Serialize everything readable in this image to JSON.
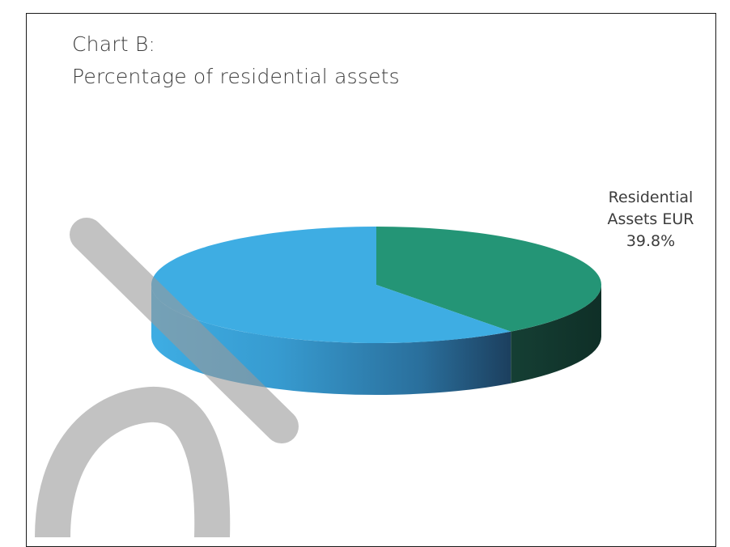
{
  "title_line1": "Chart B:",
  "title_line2": "Percentage of residential assets",
  "chart_data": {
    "type": "pie",
    "title": "Chart B: Percentage of residential assets",
    "is_3d": true,
    "slices": [
      {
        "label_lines": [
          "Residential",
          "Assets EUR",
          "39.8%"
        ],
        "value": 39.8,
        "color": "#249576",
        "side_color": "#14463a"
      },
      {
        "label_lines": [],
        "value": 60.2,
        "color": "#3eade3",
        "side_color": "#2a7fb0"
      }
    ],
    "legend": "none"
  },
  "colors": {
    "frame_border": "#1a1a1a",
    "title_text": "#3c3c3c",
    "watermark": "#9a9a9a"
  }
}
